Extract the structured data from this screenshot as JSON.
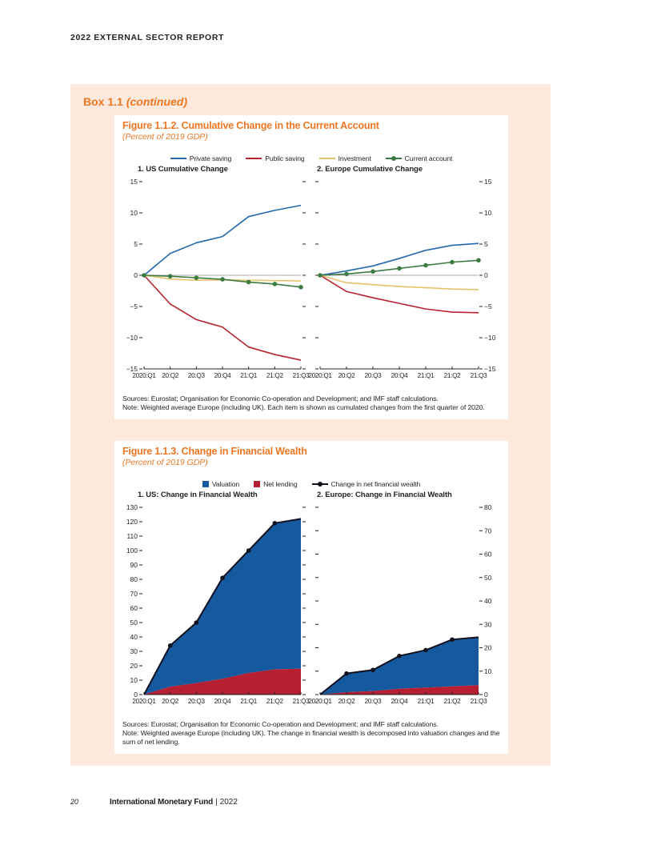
{
  "page": {
    "header": "2022 EXTERNAL SECTOR REPORT",
    "box_label": "Box 1.1",
    "box_continued": "(continued)"
  },
  "figure2": {
    "title": "Figure 1.1.2. Cumulative Change in the Current Account",
    "subtitle": "(Percent of 2019 GDP)",
    "legend": [
      "Private saving",
      "Public saving",
      "Investment",
      "Current account"
    ],
    "sources": "Sources: Eurostat; Organisation for Economic Co-operation and Development; and IMF staff calculations.",
    "note": "Note: Weighted average Europe (including UK). Each item is shown as cumulated changes from the first quarter of 2020."
  },
  "figure3": {
    "title": "Figure 1.1.3. Change in Financial Wealth",
    "subtitle": "(Percent of 2019 GDP)",
    "legend": [
      "Valuation",
      "Net lending",
      "Change in net financial wealth"
    ],
    "sources": "Sources: Eurostat; Organisation for Economic Co-operation and Development; and IMF staff calculations.",
    "note": "Note: Weighted average Europe (including UK). The change in financial wealth is decomposed into valuation changes and the sum of net lending."
  },
  "footer": {
    "page_number": "20",
    "org": "International Monetary Fund",
    "divider": "|",
    "year": "2022"
  },
  "colors": {
    "accent_orange": "#ee7623",
    "box_background": "#fdeadc",
    "private_saving_blue": "#2268ae",
    "public_saving_red": "#b6232f",
    "investment_yellow": "#e7c168",
    "current_account_green": "#3c7b40",
    "valuation_blue": "#15599f",
    "net_lending_red": "#b51f31",
    "wealth_line_black": "#10101e",
    "zero_line_gray": "#8a8a8a"
  },
  "chart_data": [
    {
      "id": "us-cumulative",
      "type": "line",
      "title": "1. US Cumulative Change",
      "categories": [
        "2020:Q1",
        "20:Q2",
        "20:Q3",
        "20:Q4",
        "21:Q1",
        "21:Q2",
        "21:Q3"
      ],
      "ylim": [
        -15,
        15
      ],
      "yticks": [
        15,
        10,
        5,
        0,
        -5,
        -10,
        -15
      ],
      "labels_side": "left",
      "zero_line": true,
      "series": [
        {
          "name": "Private saving",
          "color": "#2268ae",
          "marker": false,
          "values": [
            0,
            3.5,
            5.2,
            6.2,
            9.4,
            10.4,
            11.2
          ]
        },
        {
          "name": "Public saving",
          "color": "#b6232f",
          "marker": false,
          "values": [
            0,
            -4.6,
            -7.1,
            -8.3,
            -11.5,
            -12.7,
            -13.6
          ]
        },
        {
          "name": "Investment",
          "color": "#e7c168",
          "marker": false,
          "values": [
            0,
            -0.6,
            -0.8,
            -0.75,
            -0.8,
            -0.85,
            -0.9
          ]
        },
        {
          "name": "Current account",
          "color": "#3c7b40",
          "marker": true,
          "values": [
            0,
            -0.15,
            -0.4,
            -0.65,
            -1.1,
            -1.4,
            -1.9
          ]
        }
      ]
    },
    {
      "id": "europe-cumulative",
      "type": "line",
      "title": "2. Europe Cumulative Change",
      "categories": [
        "2020:Q1",
        "20:Q2",
        "20:Q3",
        "20:Q4",
        "21:Q1",
        "21:Q2",
        "21:Q3"
      ],
      "ylim": [
        -15,
        15
      ],
      "yticks": [
        15,
        10,
        5,
        0,
        -5,
        -10,
        -15
      ],
      "labels_side": "right",
      "zero_line": true,
      "series": [
        {
          "name": "Private saving",
          "color": "#2268ae",
          "marker": false,
          "values": [
            0,
            0.7,
            1.5,
            2.7,
            4.0,
            4.8,
            5.1
          ]
        },
        {
          "name": "Public saving",
          "color": "#b6232f",
          "marker": false,
          "values": [
            0,
            -2.6,
            -3.6,
            -4.5,
            -5.4,
            -5.9,
            -6.0
          ]
        },
        {
          "name": "Investment",
          "color": "#e7c168",
          "marker": false,
          "values": [
            0,
            -1.2,
            -1.5,
            -1.8,
            -2.0,
            -2.2,
            -2.3
          ]
        },
        {
          "name": "Current account",
          "color": "#3c7b40",
          "marker": true,
          "values": [
            0,
            0.2,
            0.6,
            1.1,
            1.6,
            2.1,
            2.4
          ]
        }
      ]
    },
    {
      "id": "us-wealth",
      "type": "stacked-area",
      "title": "1. US: Change in Financial Wealth",
      "categories": [
        "2020:Q1",
        "20:Q2",
        "20:Q3",
        "20:Q4",
        "21:Q1",
        "21:Q2",
        "21:Q3"
      ],
      "ylim": [
        0,
        130
      ],
      "yticks": [
        130,
        120,
        110,
        100,
        90,
        80,
        70,
        60,
        50,
        40,
        30,
        20,
        10,
        0
      ],
      "labels_side": "left",
      "net_lending": {
        "name": "Net lending",
        "color": "#b51f31",
        "values": [
          0,
          5.5,
          8,
          11,
          15,
          17.5,
          18
        ]
      },
      "valuation": {
        "name": "Valuation",
        "color": "#15599f"
      },
      "total_line": {
        "name": "Change in net financial wealth",
        "color": "#10101e",
        "values": [
          0,
          34,
          50,
          81,
          100,
          119,
          122
        ]
      }
    },
    {
      "id": "europe-wealth",
      "type": "stacked-area",
      "title": "2. Europe: Change in Financial Wealth",
      "categories": [
        "2020:Q1",
        "20:Q2",
        "20:Q3",
        "20:Q4",
        "21:Q1",
        "21:Q2",
        "21:Q3"
      ],
      "ylim": [
        0,
        80
      ],
      "yticks": [
        80,
        70,
        60,
        50,
        40,
        30,
        20,
        10,
        0
      ],
      "labels_side": "right",
      "net_lending": {
        "name": "Net lending",
        "color": "#b51f31",
        "values": [
          0,
          1,
          1.5,
          2.5,
          3,
          3.5,
          4
        ]
      },
      "valuation": {
        "name": "Valuation",
        "color": "#15599f"
      },
      "total_line": {
        "name": "Change in net financial wealth",
        "color": "#10101e",
        "values": [
          0,
          9,
          10.5,
          16.5,
          19,
          23.5,
          24.5
        ]
      }
    }
  ]
}
